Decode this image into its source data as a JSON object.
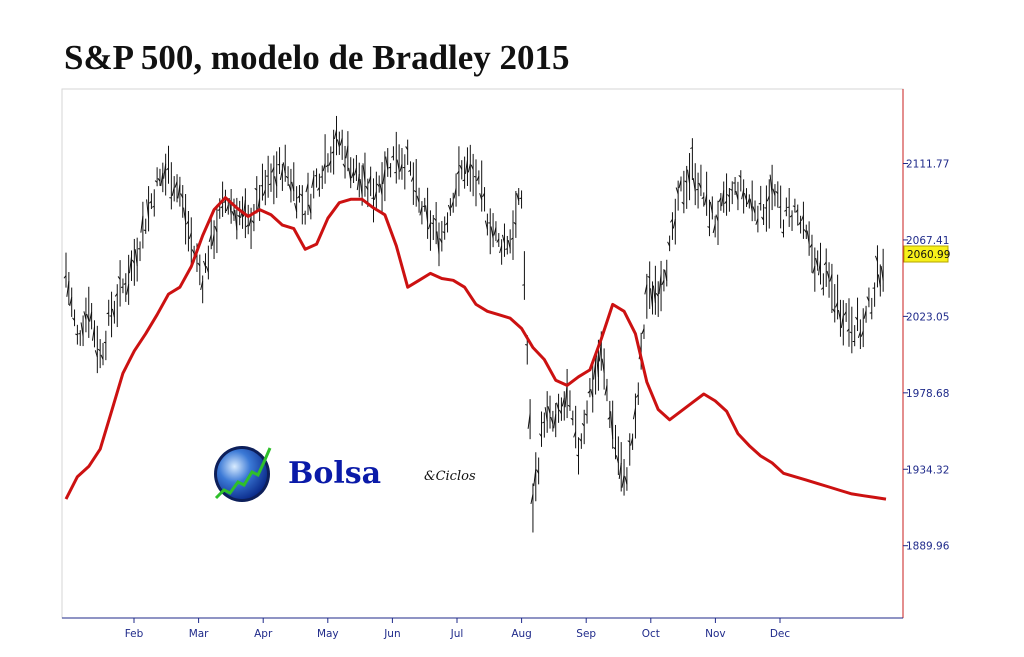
{
  "title": "S&P 500, modelo de Bradley 2015",
  "logo": {
    "name": "Bolsa",
    "suffix": "&Ciclos"
  },
  "chart_data": {
    "type": "line",
    "title": "S&P 500, modelo de Bradley 2015",
    "y_ticks": [
      "2111.77",
      "2067.41",
      "2023.05",
      "1978.68",
      "1934.32",
      "1889.96"
    ],
    "y_tick_values": [
      2111.77,
      2067.41,
      2023.05,
      1978.68,
      1934.32,
      1889.96
    ],
    "ylim": [
      1848,
      2155
    ],
    "x_ticks": [
      "Feb",
      "Mar",
      "Apr",
      "May",
      "Jun",
      "Jul",
      "Aug",
      "Sep",
      "Oct",
      "Nov",
      "Dec"
    ],
    "last_value_label": "2060.99",
    "grid": false,
    "series": [
      {
        "kind": "price-bars",
        "color": "#000000",
        "x": [
          0,
          5,
          10,
          15,
          20,
          25,
          30,
          35,
          40,
          45,
          50,
          55,
          60,
          65,
          70,
          75,
          80,
          85,
          90,
          95,
          100,
          105,
          110,
          115,
          120,
          125,
          130,
          135,
          140,
          145,
          150,
          155,
          160,
          165,
          170,
          175,
          180,
          185,
          190,
          195,
          200,
          205,
          210,
          215,
          220,
          225,
          230,
          235,
          240,
          245,
          250,
          255,
          260,
          265,
          270,
          275,
          280,
          285,
          290,
          295,
          300,
          305,
          310,
          315,
          320,
          325,
          330,
          335,
          340,
          345,
          350,
          355,
          360
        ],
        "values": [
          2050,
          2010,
          2030,
          2000,
          2025,
          2040,
          2055,
          2080,
          2100,
          2108,
          2095,
          2065,
          2045,
          2072,
          2090,
          2085,
          2075,
          2092,
          2102,
          2110,
          2100,
          2085,
          2102,
          2118,
          2124,
          2112,
          2100,
          2095,
          2108,
          2118,
          2112,
          2088,
          2075,
          2070,
          2095,
          2110,
          2102,
          2082,
          2065,
          2068,
          2092,
          1915,
          1965,
          1960,
          1975,
          1945,
          1980,
          2000,
          1960,
          1925,
          1960,
          2035,
          2040,
          2060,
          2095,
          2110,
          2092,
          2078,
          2088,
          2098,
          2090,
          2085,
          2095,
          2080,
          2085,
          2068,
          2052,
          2042,
          2028,
          2020,
          2015,
          2040,
          2061
        ]
      },
      {
        "kind": "line",
        "color": "#cc1111",
        "x": [
          0,
          5,
          10,
          15,
          20,
          25,
          30,
          35,
          40,
          45,
          50,
          55,
          60,
          65,
          70,
          75,
          80,
          85,
          90,
          95,
          100,
          105,
          110,
          115,
          120,
          125,
          130,
          135,
          140,
          145,
          150,
          155,
          160,
          165,
          170,
          175,
          180,
          185,
          190,
          195,
          200,
          205,
          210,
          215,
          220,
          225,
          230,
          235,
          240,
          245,
          250,
          255,
          260,
          265,
          270,
          275,
          280,
          285,
          290,
          295,
          300,
          305,
          310,
          315,
          320,
          325,
          330,
          335,
          340,
          345,
          350,
          355,
          360
        ],
        "values": [
          1917,
          1930,
          1936,
          1946,
          1968,
          1990,
          2003,
          2013,
          2024,
          2036,
          2040,
          2052,
          2070,
          2085,
          2092,
          2086,
          2081,
          2085,
          2082,
          2076,
          2074,
          2062,
          2065,
          2080,
          2089,
          2091,
          2091,
          2086,
          2082,
          2064,
          2040,
          2044,
          2048,
          2045,
          2044,
          2040,
          2030,
          2026,
          2024,
          2022,
          2016,
          2005,
          1998,
          1986,
          1983,
          1988,
          1992,
          2010,
          2030,
          2026,
          2013,
          1985,
          1969,
          1963,
          1968,
          1973,
          1978,
          1974,
          1968,
          1955,
          1948,
          1942,
          1938,
          1932,
          1930,
          1928,
          1926,
          1924,
          1922,
          1920,
          1919,
          1918,
          1917
        ]
      }
    ]
  }
}
